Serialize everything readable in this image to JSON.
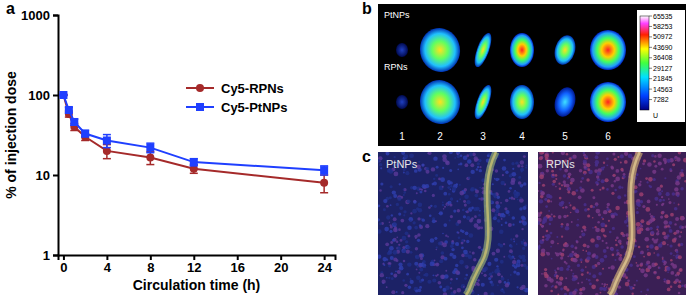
{
  "panel_labels": [
    "a",
    "b",
    "c"
  ],
  "chart_data": {
    "type": "line",
    "x_label": "Circulation time (h)",
    "y_label": "% of injection dose",
    "x": [
      0,
      0.5,
      1,
      2,
      4,
      8,
      12,
      24
    ],
    "series": [
      {
        "name": "Cy5-RPNs",
        "color": "#a52a2a",
        "marker": "circle",
        "values": [
          100,
          58,
          40,
          30,
          20,
          16.5,
          12,
          8
        ],
        "errors": [
          0,
          5,
          4,
          3,
          4,
          3,
          1.5,
          2
        ]
      },
      {
        "name": "Cy5-PtNPs",
        "color": "#1f3fff",
        "marker": "square",
        "values": [
          100,
          65,
          46,
          33,
          27,
          22,
          14.5,
          11.5
        ],
        "errors": [
          0,
          5,
          4,
          3,
          5,
          3,
          1.5,
          1.5
        ]
      }
    ],
    "xlim": [
      -0.5,
      25
    ],
    "xticks": [
      0,
      4,
      8,
      12,
      16,
      20,
      24
    ],
    "ylim": [
      1,
      1000
    ],
    "yticks": [
      1,
      10,
      100,
      1000
    ],
    "log": "y",
    "grid": false,
    "legend": "upper right"
  },
  "panel_b": {
    "rows": [
      "PtNPs",
      "RPNs"
    ],
    "organs": [
      1,
      2,
      3,
      4,
      5,
      6
    ],
    "colorbar": {
      "range": [
        0,
        65535
      ],
      "ticks": [
        7282,
        14563,
        21845,
        29127,
        36408,
        43690,
        50972,
        58253,
        65535
      ],
      "label": "U"
    }
  },
  "panel_c": {
    "images": [
      "PtNPs",
      "RPNs"
    ]
  }
}
